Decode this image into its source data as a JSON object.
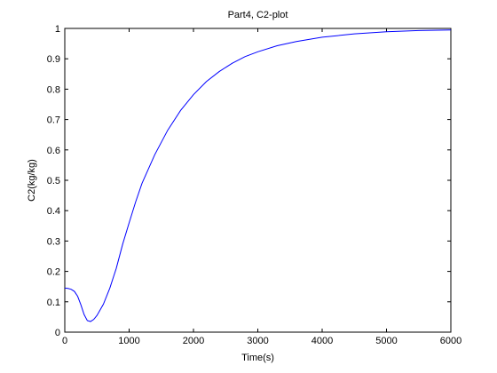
{
  "chart_data": {
    "type": "line",
    "title": "Part4, C2-plot",
    "xlabel": "Time(s)",
    "ylabel": "C2(kg/kg)",
    "xlim": [
      0,
      6000
    ],
    "ylim": [
      0,
      1
    ],
    "xticks": [
      0,
      1000,
      2000,
      3000,
      4000,
      5000,
      6000
    ],
    "yticks": [
      0,
      0.1,
      0.2,
      0.3,
      0.4,
      0.5,
      0.6,
      0.7,
      0.8,
      0.9,
      1
    ],
    "grid": false,
    "series": [
      {
        "color": "#0000ff",
        "x": [
          0,
          50,
          100,
          150,
          200,
          250,
          300,
          350,
          400,
          450,
          500,
          600,
          700,
          800,
          900,
          1000,
          1100,
          1200,
          1400,
          1600,
          1800,
          2000,
          2200,
          2400,
          2600,
          2800,
          3000,
          3300,
          3600,
          4000,
          4500,
          5000,
          5500,
          6000
        ],
        "y": [
          0.145,
          0.144,
          0.141,
          0.134,
          0.118,
          0.09,
          0.058,
          0.038,
          0.035,
          0.042,
          0.055,
          0.092,
          0.145,
          0.21,
          0.29,
          0.36,
          0.428,
          0.49,
          0.585,
          0.665,
          0.73,
          0.782,
          0.825,
          0.858,
          0.885,
          0.907,
          0.923,
          0.943,
          0.957,
          0.971,
          0.982,
          0.989,
          0.993,
          0.995
        ]
      }
    ]
  }
}
